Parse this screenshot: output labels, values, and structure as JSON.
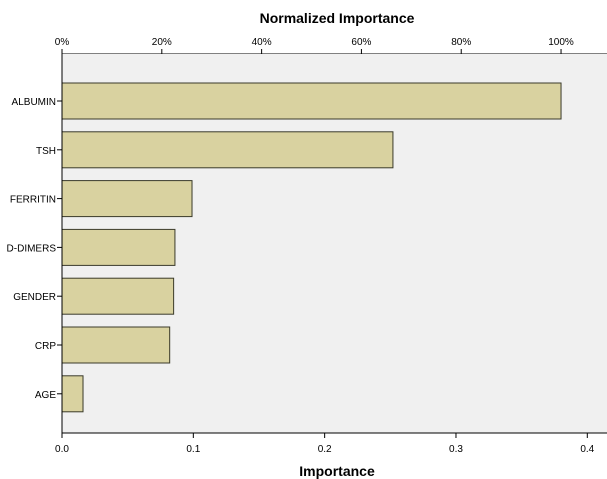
{
  "chart_data": {
    "type": "bar",
    "orientation": "horizontal",
    "title": "Normalized Importance",
    "xlabel": "Importance",
    "ylabel": "",
    "categories": [
      "ALBUMIN",
      "TSH",
      "FERRITIN",
      "D-DIMERS",
      "GENDER",
      "CRP",
      "AGE"
    ],
    "values": [
      0.38,
      0.252,
      0.099,
      0.086,
      0.085,
      0.082,
      0.016
    ],
    "xlim": [
      0,
      0.415
    ],
    "x_ticks": [
      "0.0",
      "0.1",
      "0.2",
      "0.3",
      "0.4"
    ],
    "x_tick_values": [
      0,
      0.1,
      0.2,
      0.3,
      0.4
    ],
    "top_axis_ticks": [
      "0%",
      "20%",
      "40%",
      "60%",
      "80%",
      "100%"
    ],
    "top_axis_values": [
      0,
      0.2,
      0.4,
      0.6,
      0.8,
      1.0
    ],
    "top_axis_max_value": 0.38,
    "grid": false,
    "legend": "none",
    "colors": {
      "bar_fill": "#D9D2A0",
      "bar_stroke": "#3a3a2a",
      "plot_background": "#F0F0F0",
      "axis": "#000000"
    }
  }
}
